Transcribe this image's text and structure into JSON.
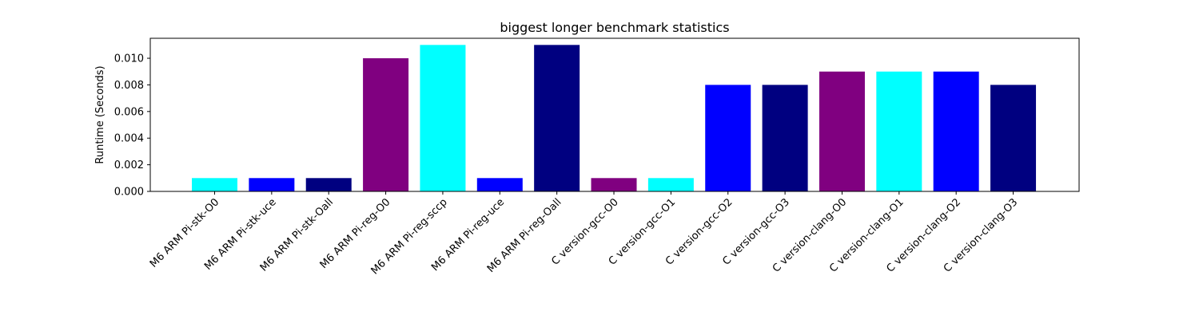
{
  "chart_data": {
    "type": "bar",
    "title": "biggest longer benchmark statistics",
    "xlabel": "",
    "ylabel": "Runtime (Seconds)",
    "ylim": [
      0,
      0.0115
    ],
    "yticks": [
      "0.000",
      "0.002",
      "0.004",
      "0.006",
      "0.008",
      "0.010"
    ],
    "grid": false,
    "categories": [
      "M6 ARM Pi-stk-O0",
      "M6 ARM Pi-stk-uce",
      "M6 ARM Pi-stk-Oall",
      "M6 ARM Pi-reg-O0",
      "M6 ARM Pi-reg-sccp",
      "M6 ARM Pi-reg-uce",
      "M6 ARM Pi-reg-Oall",
      "C version-gcc-O0",
      "C version-gcc-O1",
      "C version-gcc-O2",
      "C version-gcc-O3",
      "C version-clang-O0",
      "C version-clang-O1",
      "C version-clang-O2",
      "C version-clang-O3"
    ],
    "values": [
      0.001,
      0.001,
      0.001,
      0.01,
      0.011,
      0.001,
      0.011,
      0.001,
      0.001,
      0.008,
      0.008,
      0.009,
      0.009,
      0.009,
      0.008
    ],
    "colors": [
      "#00ffff",
      "#0000ff",
      "#000080",
      "#800080",
      "#00ffff",
      "#0000ff",
      "#000080",
      "#800080",
      "#00ffff",
      "#0000ff",
      "#000080",
      "#800080",
      "#00ffff",
      "#0000ff",
      "#000080"
    ]
  }
}
